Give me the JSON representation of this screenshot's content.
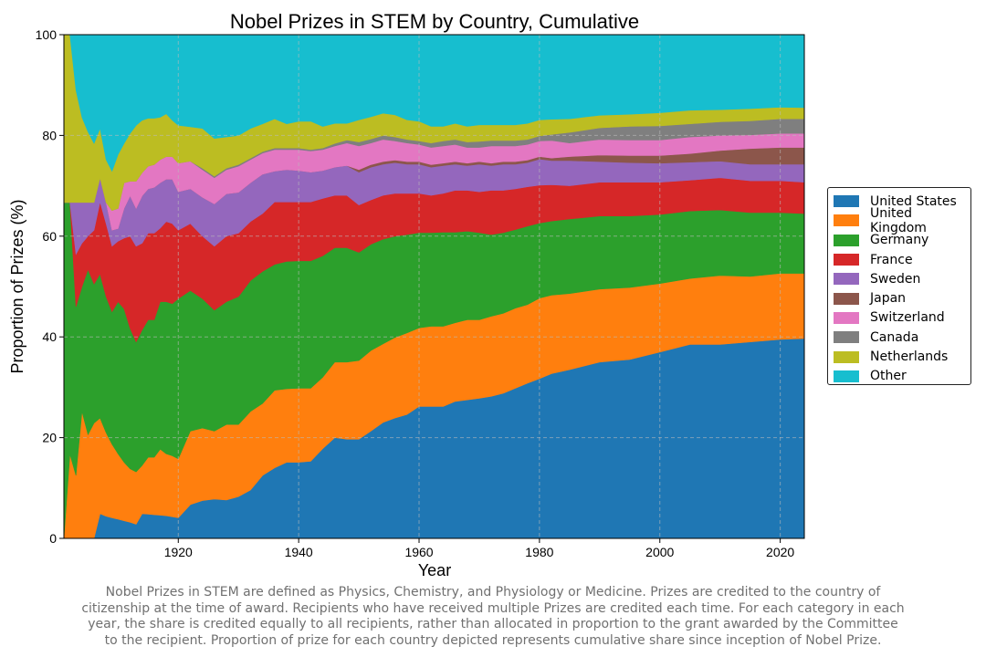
{
  "chart_data": {
    "type": "area",
    "stacked": true,
    "title": "Nobel Prizes in STEM by Country, Cumulative",
    "xlabel": "Year",
    "ylabel": "Proportion of Prizes (%)",
    "xlim": [
      1901,
      2024
    ],
    "ylim": [
      0,
      100
    ],
    "xticks": [
      "1920",
      "1940",
      "1960",
      "1980",
      "2000",
      "2020"
    ],
    "yticks": [
      "0",
      "20",
      "40",
      "60",
      "80",
      "100"
    ],
    "grid": true,
    "legend_position": "right",
    "x": [
      1901,
      1902,
      1903,
      1904,
      1905,
      1906,
      1907,
      1908,
      1909,
      1910,
      1911,
      1912,
      1913,
      1914,
      1915,
      1916,
      1917,
      1918,
      1919,
      1920,
      1922,
      1924,
      1926,
      1928,
      1930,
      1932,
      1934,
      1936,
      1938,
      1940,
      1942,
      1944,
      1946,
      1948,
      1950,
      1952,
      1954,
      1956,
      1958,
      1960,
      1962,
      1964,
      1966,
      1968,
      1970,
      1972,
      1974,
      1976,
      1978,
      1980,
      1982,
      1985,
      1990,
      1995,
      2000,
      2005,
      2010,
      2015,
      2020,
      2024
    ],
    "series": [
      {
        "name": "United States",
        "color": "#1f77b4",
        "values": [
          0,
          0,
          0,
          0,
          0,
          0,
          4.9,
          4.4,
          4.1,
          3.8,
          3.5,
          3.2,
          2.8,
          4.9,
          4.8,
          4.7,
          4.6,
          4.5,
          4.3,
          4.1,
          6.7,
          7.5,
          7.8,
          7.6,
          8.3,
          9.6,
          12.5,
          14,
          15.1,
          15.1,
          15.3,
          17.8,
          20,
          19.7,
          19.7,
          21.3,
          23,
          23.9,
          24.6,
          26.2,
          26.2,
          26.2,
          27.2,
          27.5,
          27.8,
          28.2,
          28.8,
          29.8,
          30.8,
          31.7,
          32.7,
          33.5,
          35,
          35.5,
          37,
          38.5,
          38.5,
          39,
          39.5,
          39.7
        ]
      },
      {
        "name": "United Kingdom",
        "color": "#ff7f0e",
        "values": [
          0,
          16.7,
          12.5,
          25.2,
          20.6,
          22.9,
          19,
          16.6,
          14.6,
          13,
          11.6,
          10.6,
          10.4,
          9.6,
          11.3,
          11.4,
          13.1,
          12.3,
          12.1,
          11.7,
          14.6,
          14.4,
          13.5,
          15,
          14.3,
          15.6,
          14.3,
          15.4,
          14.6,
          14.7,
          14.5,
          14.2,
          15,
          15.3,
          15.6,
          16,
          15.6,
          16,
          16.2,
          15.6,
          15.9,
          15.9,
          15.6,
          15.9,
          15.6,
          15.9,
          15.9,
          15.9,
          15.6,
          16,
          15.6,
          15.1,
          14.5,
          14.3,
          13.6,
          13.1,
          13.7,
          13,
          13.1,
          12.9
        ]
      },
      {
        "name": "Germany",
        "color": "#2ca02c",
        "values": [
          66.7,
          50,
          33.5,
          24.8,
          32.8,
          27.6,
          28.6,
          27,
          26.3,
          30.2,
          30.5,
          27.9,
          25.8,
          26.9,
          27.3,
          27.3,
          29.3,
          30.2,
          30.2,
          31.8,
          27.9,
          25.7,
          24,
          24.4,
          25.4,
          26,
          26.2,
          25,
          25.3,
          25.3,
          25.3,
          24.1,
          22.7,
          22.7,
          21.5,
          21.1,
          20.8,
          20.1,
          19.5,
          18.9,
          18.6,
          18.7,
          18,
          17.6,
          17.3,
          16.2,
          16,
          15.6,
          15.6,
          14.9,
          14.7,
          14.8,
          14.5,
          14.2,
          13.7,
          13.4,
          13,
          12.7,
          12.1,
          11.9
        ]
      },
      {
        "name": "France",
        "color": "#d62728",
        "values": [
          0,
          0,
          10.4,
          8.6,
          6.6,
          10.7,
          14.3,
          14.5,
          13,
          12,
          14,
          18.3,
          19,
          17.2,
          17.2,
          17.2,
          14.6,
          15.9,
          15.9,
          13.6,
          13.3,
          12.4,
          12.7,
          13,
          12.6,
          11.7,
          11.5,
          12.4,
          11.8,
          11.7,
          11.7,
          11.4,
          10.4,
          10.4,
          9.4,
          8.8,
          8.7,
          8.5,
          8.2,
          7.8,
          7.4,
          7.7,
          8.3,
          8.1,
          8.1,
          8.8,
          8.4,
          8.1,
          7.8,
          7.5,
          7.2,
          6.6,
          6.7,
          6.7,
          6.4,
          6.1,
          6.4,
          6.3,
          6.3,
          6.2
        ]
      },
      {
        "name": "Sweden",
        "color": "#9467bd",
        "values": [
          0,
          0,
          10.3,
          8.1,
          6.7,
          5.5,
          4.8,
          4.2,
          3.2,
          2.5,
          5.9,
          8,
          7.5,
          9.4,
          8.8,
          9.1,
          9,
          8.4,
          8.8,
          7.6,
          6.9,
          7.7,
          8.4,
          8.4,
          8.1,
          7.7,
          7.8,
          6.1,
          6.4,
          6.2,
          5.9,
          5.5,
          5.6,
          5.9,
          6.5,
          6.5,
          6.2,
          6.1,
          5.8,
          5.8,
          5.6,
          5.5,
          5.2,
          4.9,
          5.5,
          4.9,
          5.2,
          4.9,
          4.8,
          5.2,
          4.8,
          5,
          4.1,
          3.9,
          3.8,
          3.6,
          3.3,
          3.3,
          3.3,
          3.6
        ]
      },
      {
        "name": "Japan",
        "color": "#8c564b",
        "values": [
          0,
          0,
          0,
          0,
          0,
          0,
          0,
          0,
          0,
          0,
          0,
          0,
          0,
          0,
          0,
          0,
          0,
          0,
          0,
          0,
          0,
          0,
          0,
          0,
          0,
          0,
          0,
          0,
          0,
          0,
          0,
          0,
          0,
          0,
          0.5,
          0.5,
          0.5,
          0.5,
          0.5,
          0.5,
          0.5,
          0.5,
          0.5,
          0.5,
          0.5,
          0.5,
          0.5,
          0.5,
          0.5,
          0.5,
          0.5,
          0.8,
          1.3,
          1.4,
          1.5,
          1.7,
          2.1,
          3.1,
          3.3,
          3.3
        ]
      },
      {
        "name": "Switzerland",
        "color": "#e377c2",
        "values": [
          0,
          0,
          0,
          0,
          0,
          0,
          0,
          0,
          3.9,
          4,
          5.1,
          2.9,
          5.4,
          4.6,
          4.5,
          4.5,
          4.6,
          4.5,
          4.5,
          5.7,
          5.5,
          5.5,
          5.2,
          4.8,
          5.2,
          4.6,
          4.2,
          4.3,
          4,
          4.2,
          4.2,
          4.2,
          4.2,
          4.5,
          4.7,
          4.3,
          4.4,
          3.8,
          3.7,
          3.4,
          3.4,
          3.4,
          3.4,
          3.1,
          2.8,
          3.4,
          3.1,
          3.1,
          3.1,
          3.1,
          3.5,
          2.7,
          3.1,
          3.1,
          3.1,
          3.3,
          3,
          2.7,
          2.8,
          2.8
        ]
      },
      {
        "name": "Canada",
        "color": "#7f7f7f",
        "values": [
          0,
          0,
          0,
          0,
          0,
          0,
          0,
          0,
          0,
          0,
          0,
          0,
          0,
          0,
          0,
          0,
          0,
          0,
          0,
          0,
          0,
          0.3,
          0.3,
          0.3,
          0.3,
          0.3,
          0.3,
          0.3,
          0.3,
          0.3,
          0.3,
          0.3,
          0.5,
          0.6,
          0.8,
          0.8,
          0.8,
          0.8,
          0.7,
          0.7,
          0.9,
          1,
          1,
          1.1,
          1.2,
          1.1,
          1.1,
          1.1,
          1,
          1,
          1.2,
          2.1,
          2.3,
          2.7,
          2.8,
          2.6,
          2.7,
          2.8,
          2.9,
          2.9
        ]
      },
      {
        "name": "Netherlands",
        "color": "#bcbd22",
        "values": [
          33.3,
          33.3,
          22.3,
          16.9,
          14,
          11.7,
          9.8,
          8.5,
          7.8,
          10.7,
          7.8,
          9.5,
          11.1,
          10.4,
          9.5,
          9.2,
          8.4,
          8.5,
          7.2,
          7.5,
          6.8,
          7.9,
          7.5,
          6.2,
          5.8,
          5.9,
          5.5,
          5.8,
          4.8,
          5.3,
          5.6,
          4.3,
          4,
          3.3,
          4.4,
          4.4,
          4.4,
          4.4,
          3.9,
          3.9,
          3.3,
          2.9,
          3.2,
          3.1,
          3.3,
          3.1,
          3.1,
          3.1,
          3.2,
          3.2,
          3,
          2.7,
          2.5,
          2.4,
          2.6,
          2.7,
          2.4,
          2.4,
          2.3,
          2.2
        ]
      },
      {
        "name": "Other",
        "color": "#17becf",
        "values": [
          0,
          0,
          11,
          16.4,
          19.3,
          21.6,
          18.6,
          24.8,
          27.1,
          23.8,
          21.6,
          19.6,
          18,
          17,
          16.6,
          16.6,
          16.4,
          15.7,
          17,
          18,
          18.3,
          18.6,
          20.6,
          20.3,
          20,
          18.6,
          17.7,
          16.7,
          17.7,
          17.2,
          17.2,
          18.2,
          17.6,
          17.6,
          16.9,
          16.3,
          15.6,
          15.9,
          16.9,
          17.2,
          18.2,
          18.2,
          17.6,
          18.2,
          17.9,
          17.9,
          17.9,
          17.9,
          17.6,
          16.9,
          16.8,
          16.7,
          16,
          15.8,
          15.5,
          15,
          14.9,
          14.7,
          14.4,
          14.5
        ]
      }
    ]
  },
  "caption": [
    "Nobel Prizes in STEM are defined as Physics, Chemistry, and Physiology or Medicine. Prizes are credited to the country of",
    "citizenship at the time of award. Recipients who have received multiple Prizes are credited each time. For each category in each",
    "year, the share is credited equally to all recipients, rather than allocated in proportion to the grant awarded by the Committee",
    "to the recipient. Proportion of prize for each country depicted represents cumulative share since inception of Nobel Prize."
  ]
}
